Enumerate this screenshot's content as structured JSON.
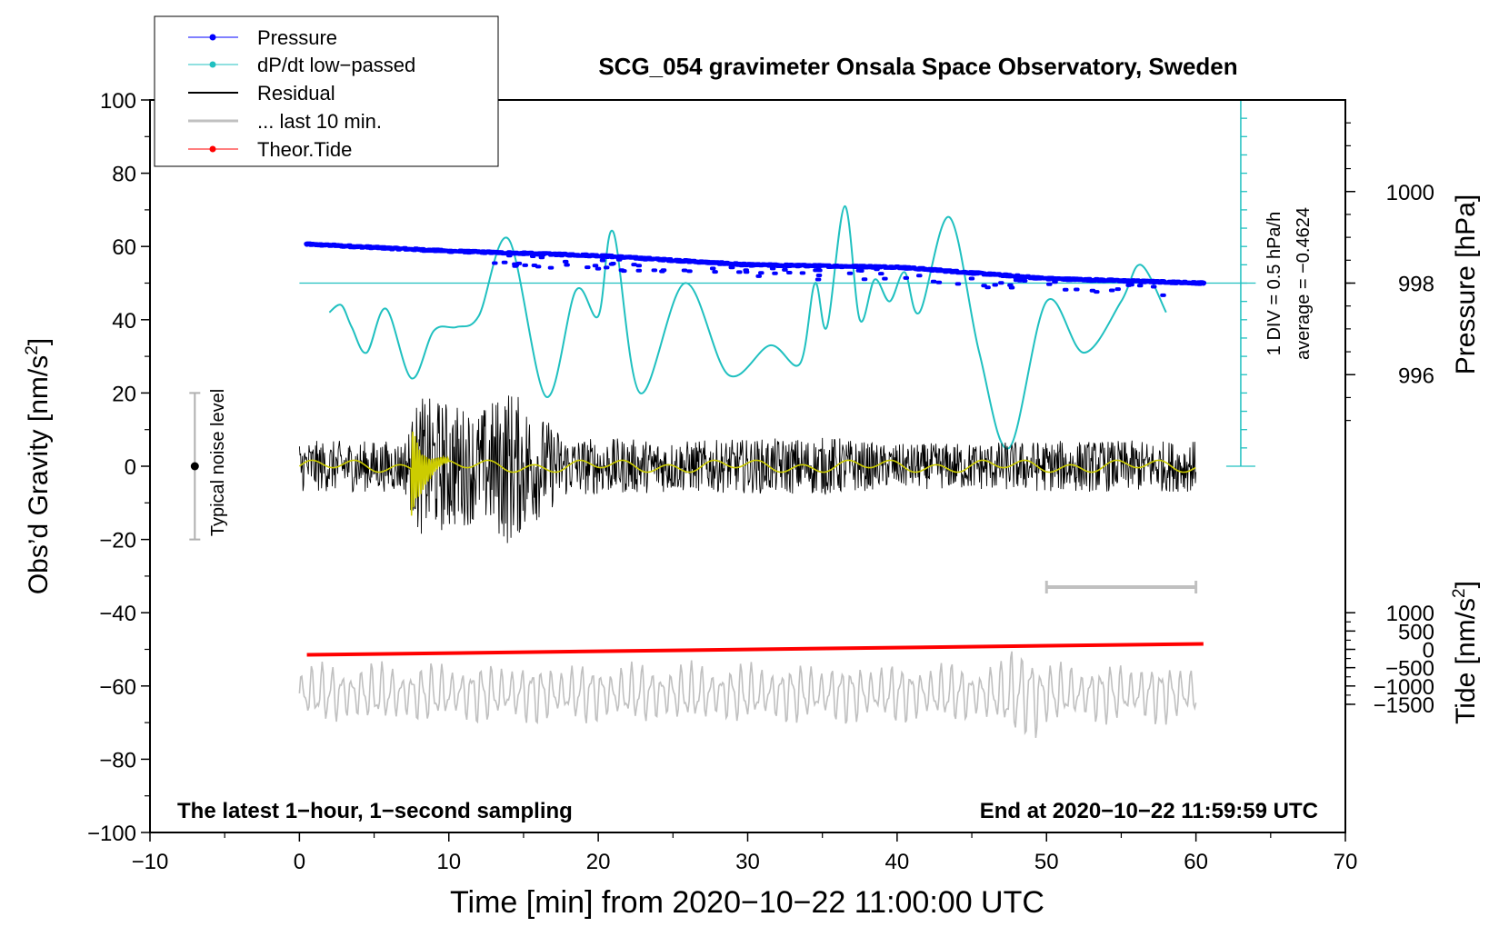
{
  "chart_data": {
    "type": "line",
    "title": "SCG_054 gravimeter Onsala Space Observatory, Sweden",
    "xlabel": "Time [min] from 2020−10−22 11:00:00 UTC",
    "ylabel_left": "Obs’d Gravity [nm/s",
    "ylabel_left_sup": "2",
    "ylabel_left_close": "]",
    "ylabel_pressure": "Pressure [hPa]",
    "ylabel_tide": "Tide [nm/s",
    "ylabel_tide_sup": "2",
    "ylabel_tide_close": "]",
    "xlim": [
      -10,
      70
    ],
    "ylim": [
      -100,
      100
    ],
    "x_ticks": [
      "−10",
      "0",
      "10",
      "20",
      "30",
      "40",
      "50",
      "60",
      "70"
    ],
    "y_ticks": [
      "100",
      "80",
      "60",
      "40",
      "20",
      "0",
      "−20",
      "−40",
      "−60",
      "−80",
      "−100"
    ],
    "pressure_axis": {
      "ticks": [
        "1000",
        "998",
        "996"
      ],
      "values": [
        1000,
        998,
        996
      ],
      "gravity_at_998": 50,
      "gravity_per_hPa": 12.5
    },
    "tide_axis": {
      "ticks": [
        "1000",
        "500",
        "0",
        "−500",
        "−1000",
        "−1500"
      ],
      "values": [
        1000,
        500,
        0,
        -500,
        -1000,
        -1500
      ],
      "gravity_at_zero": -50,
      "gravity_per_unit": 0.01
    },
    "legend": [
      "Pressure",
      "dP/dt low−passed",
      "Residual",
      "... last 10 min.",
      "Theor.Tide"
    ],
    "colors": {
      "pressure": "#0000ff",
      "dpdt": "#20c0c0",
      "residual": "#000000",
      "last10": "#c0c0c0",
      "tide": "#ff0000",
      "lowpass": "#cccc00",
      "noise": "#b0b0b0"
    },
    "annotation_left": "The latest 1−hour, 1−second sampling",
    "annotation_right": "End at 2020−10−22 11:59:59 UTC",
    "noise_label": "Typical noise level",
    "noise_bar": {
      "x": -7,
      "y": 0,
      "low": -20,
      "high": 20
    },
    "scale_label_1": "1 DIV = 0.5 hPa/h",
    "scale_label_2": "average = −0.4624",
    "scale_bar": {
      "x": 63,
      "y_bottom": 0,
      "y_top": 100,
      "div": 5,
      "baseline": 50
    },
    "last10_bar": {
      "x0": 50,
      "x1": 60,
      "y": -33
    },
    "pressure_series": {
      "x": [
        0.5,
        10,
        20,
        30,
        40,
        50,
        60.5
      ],
      "y": [
        998.85,
        998.7,
        998.6,
        998.4,
        998.35,
        998.1,
        998.0
      ]
    },
    "dpdt_series": {
      "x": [
        2,
        2.8,
        3.5,
        4.5,
        5.8,
        7.5,
        9,
        10.5,
        12,
        14,
        16.5,
        18.5,
        20,
        21,
        22.8,
        25.8,
        28.7,
        31.5,
        33.5,
        34.5,
        35.3,
        36.5,
        37.5,
        38.5,
        39.5,
        40.5,
        41.5,
        43.5,
        45.5,
        47.5,
        50,
        52.5,
        55,
        56.3,
        58
      ],
      "y": [
        42,
        44,
        38,
        31,
        43,
        24,
        37,
        38,
        41,
        62,
        19,
        48,
        41,
        64,
        20,
        50,
        25,
        33,
        28,
        50,
        38,
        71,
        40,
        51,
        45,
        53,
        42,
        68,
        31,
        5,
        45,
        31,
        45,
        55,
        42
      ]
    },
    "residual_envelope": {
      "x": [
        0,
        7,
        8,
        10,
        12,
        14,
        15,
        18,
        26,
        36,
        39,
        50,
        60
      ],
      "amplitude": [
        7,
        7,
        19,
        18,
        15,
        22,
        18,
        8,
        7,
        8,
        6,
        7,
        7
      ]
    },
    "tide_series": {
      "x": [
        0.5,
        60.5
      ],
      "y": [
        -51.5,
        -48.5
      ]
    }
  }
}
